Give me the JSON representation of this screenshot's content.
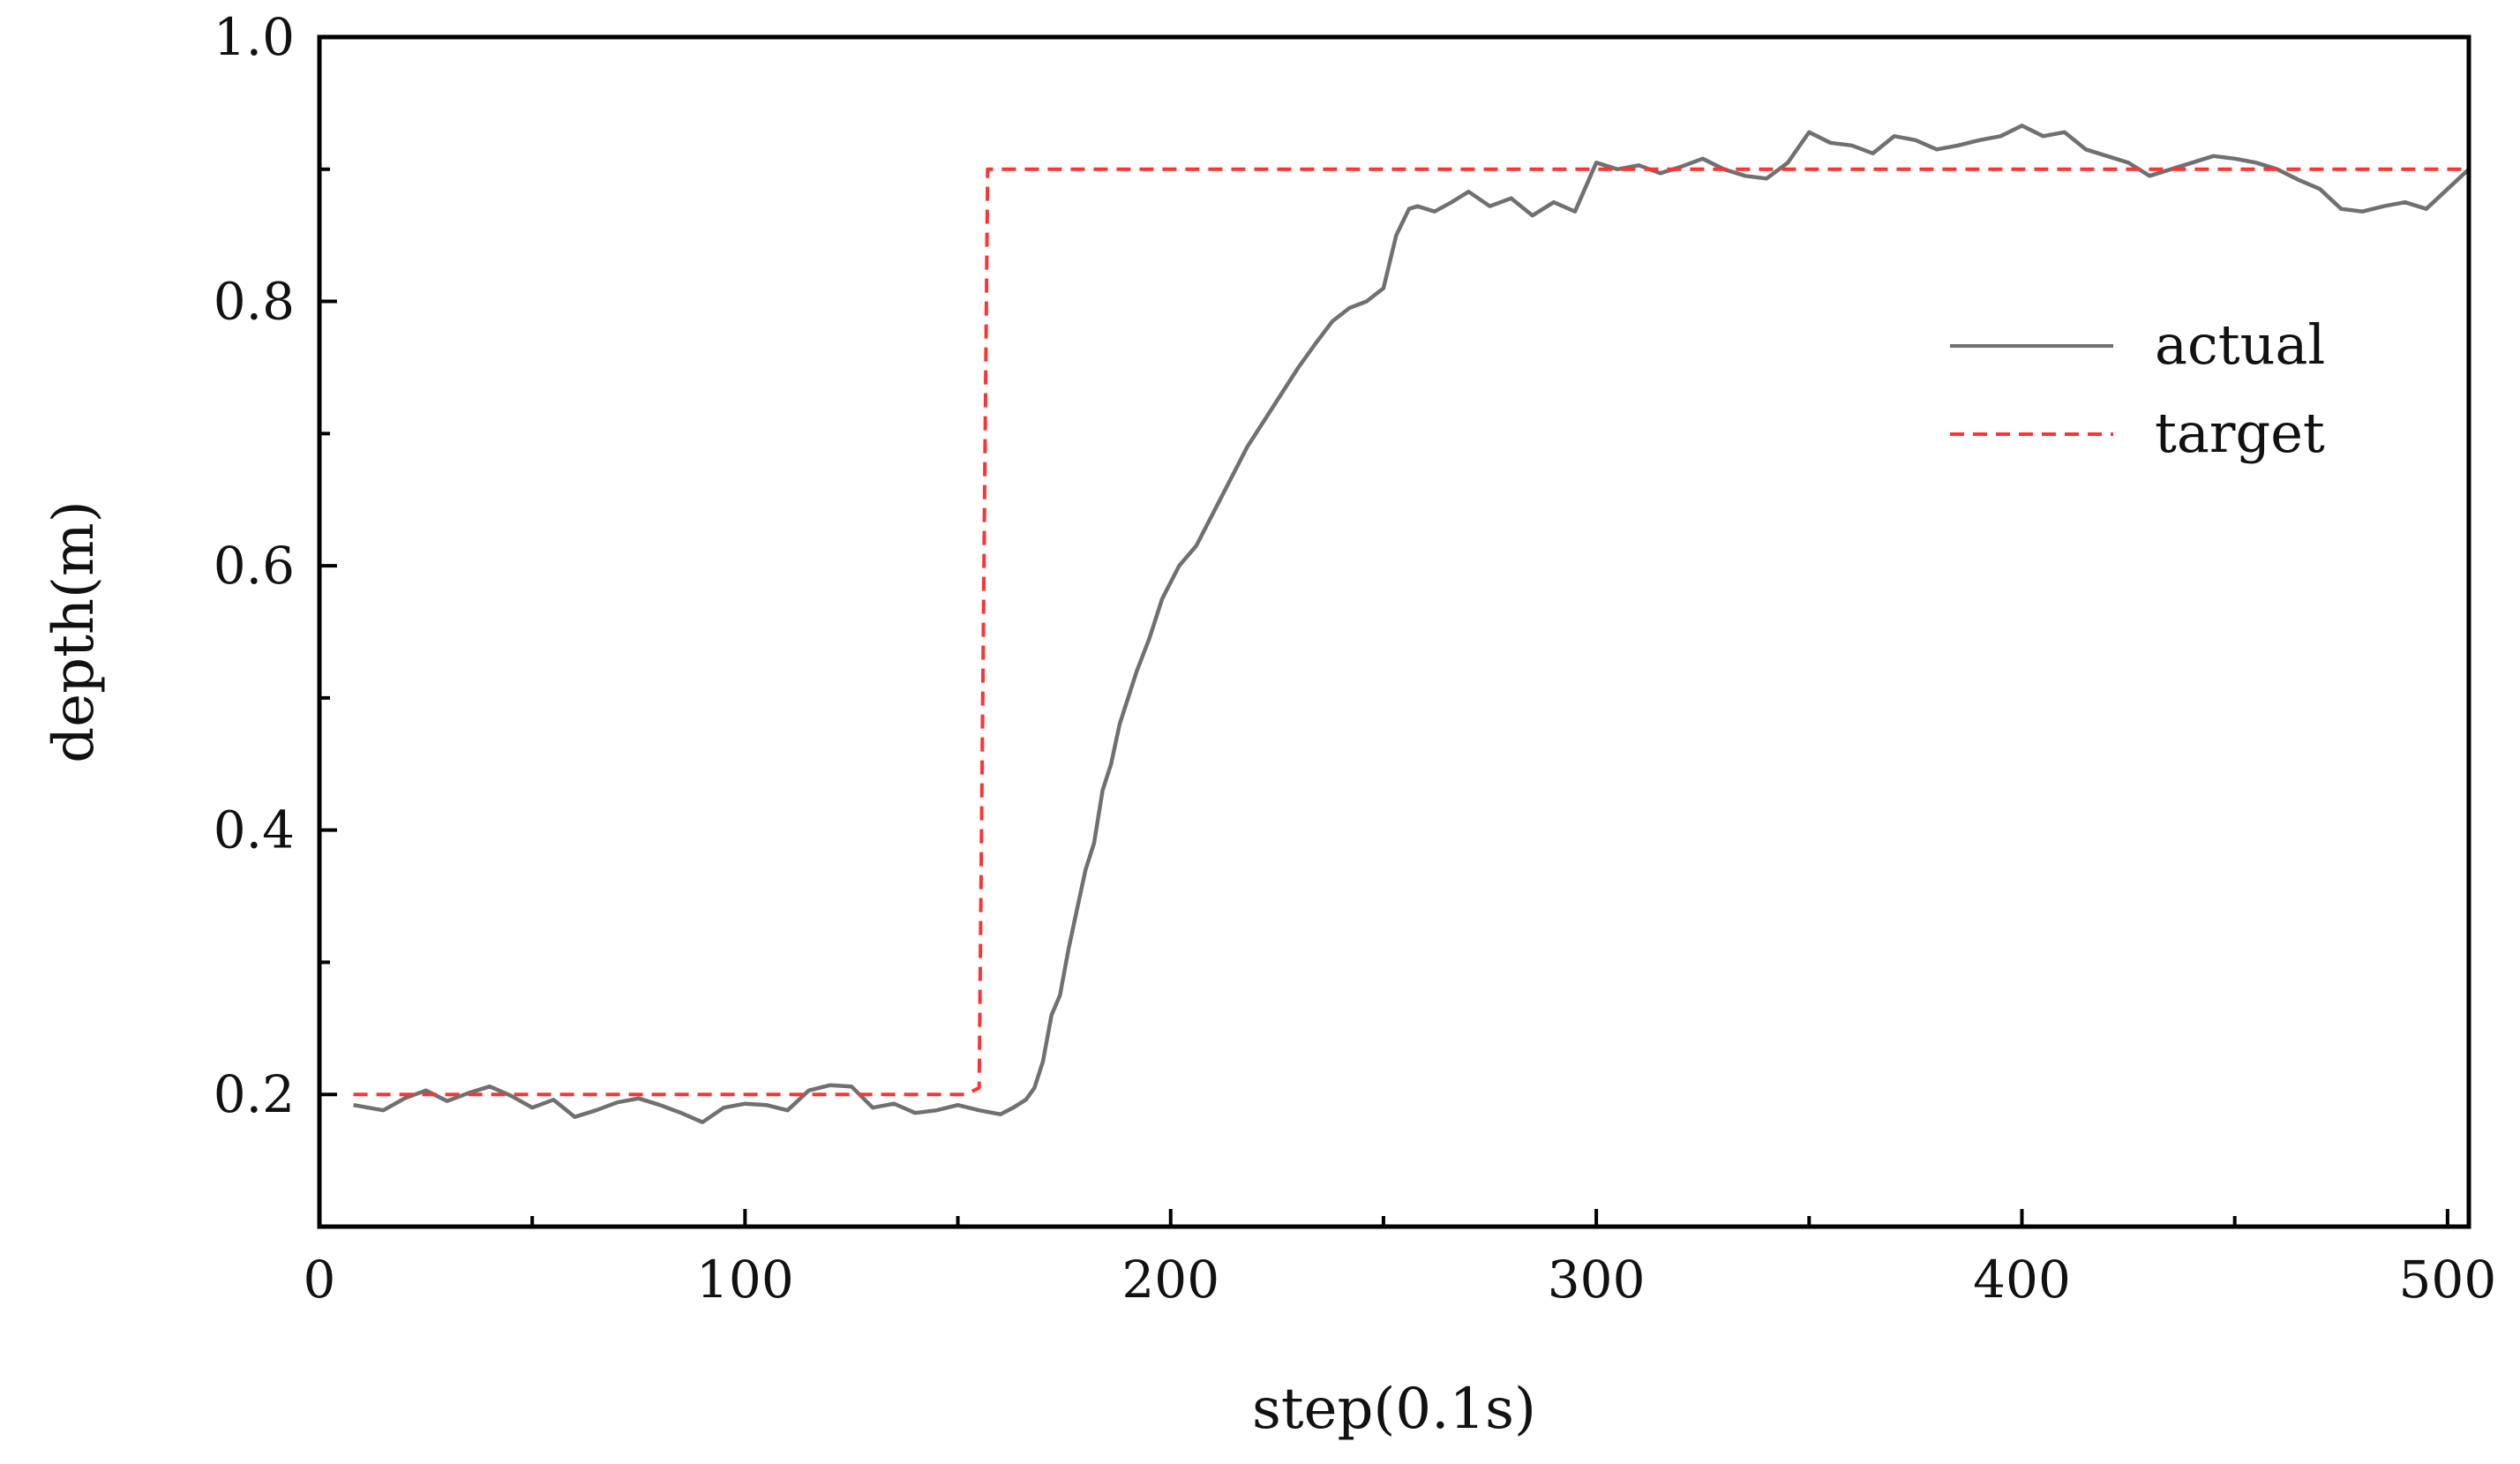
{
  "chart_data": {
    "type": "line",
    "title": "",
    "xlabel": "step(0.1s)",
    "ylabel": "depth(m)",
    "xlim": [
      0,
      505
    ],
    "ylim": [
      0.1,
      1.0
    ],
    "xticks": [
      0,
      100,
      200,
      300,
      400,
      500
    ],
    "xtick_labels": [
      "0",
      "100",
      "200",
      "300",
      "400",
      "500"
    ],
    "yticks": [
      0.2,
      0.4,
      0.6,
      0.8,
      1.0
    ],
    "ytick_labels": [
      "0.2",
      "0.4",
      "0.6",
      "0.8",
      "1.0"
    ],
    "grid": false,
    "legend_position": "right",
    "series": [
      {
        "name": "actual",
        "style": "solid",
        "color": "#707070",
        "x": [
          8,
          15,
          20,
          25,
          30,
          35,
          40,
          45,
          50,
          55,
          60,
          65,
          70,
          75,
          80,
          85,
          90,
          95,
          100,
          105,
          110,
          115,
          120,
          125,
          130,
          135,
          140,
          145,
          150,
          155,
          160,
          163,
          166,
          168,
          170,
          172,
          174,
          176,
          178,
          180,
          182,
          184,
          186,
          188,
          190,
          192,
          195,
          198,
          202,
          206,
          210,
          214,
          218,
          222,
          226,
          230,
          234,
          238,
          242,
          246,
          250,
          253,
          256,
          258,
          262,
          266,
          270,
          275,
          280,
          285,
          290,
          295,
          300,
          305,
          310,
          315,
          320,
          325,
          330,
          335,
          340,
          345,
          350,
          355,
          360,
          365,
          370,
          375,
          380,
          385,
          390,
          395,
          400,
          405,
          410,
          415,
          420,
          425,
          430,
          435,
          440,
          445,
          450,
          455,
          460,
          465,
          470,
          475,
          480,
          485,
          490,
          495,
          500,
          505
        ],
        "values": [
          0.192,
          0.188,
          0.197,
          0.203,
          0.195,
          0.201,
          0.206,
          0.199,
          0.19,
          0.196,
          0.183,
          0.188,
          0.194,
          0.197,
          0.192,
          0.186,
          0.179,
          0.19,
          0.193,
          0.192,
          0.188,
          0.203,
          0.207,
          0.206,
          0.19,
          0.193,
          0.186,
          0.188,
          0.192,
          0.188,
          0.185,
          0.19,
          0.196,
          0.205,
          0.225,
          0.26,
          0.275,
          0.31,
          0.34,
          0.37,
          0.39,
          0.43,
          0.45,
          0.48,
          0.5,
          0.52,
          0.545,
          0.575,
          0.6,
          0.615,
          0.64,
          0.665,
          0.69,
          0.71,
          0.73,
          0.75,
          0.768,
          0.785,
          0.795,
          0.8,
          0.81,
          0.85,
          0.87,
          0.872,
          0.868,
          0.875,
          0.883,
          0.872,
          0.878,
          0.865,
          0.875,
          0.868,
          0.905,
          0.9,
          0.903,
          0.897,
          0.902,
          0.908,
          0.9,
          0.895,
          0.893,
          0.905,
          0.928,
          0.92,
          0.918,
          0.912,
          0.925,
          0.922,
          0.915,
          0.918,
          0.922,
          0.925,
          0.933,
          0.925,
          0.928,
          0.915,
          0.91,
          0.905,
          0.895,
          0.9,
          0.905,
          0.91,
          0.908,
          0.905,
          0.9,
          0.892,
          0.885,
          0.87,
          0.868,
          0.872,
          0.875,
          0.87,
          0.885,
          0.9
        ]
      },
      {
        "name": "target",
        "style": "dashed",
        "color": "#ff3333",
        "x": [
          8,
          152,
          155,
          157,
          505
        ],
        "values": [
          0.2,
          0.2,
          0.205,
          0.9,
          0.9
        ]
      }
    ]
  }
}
